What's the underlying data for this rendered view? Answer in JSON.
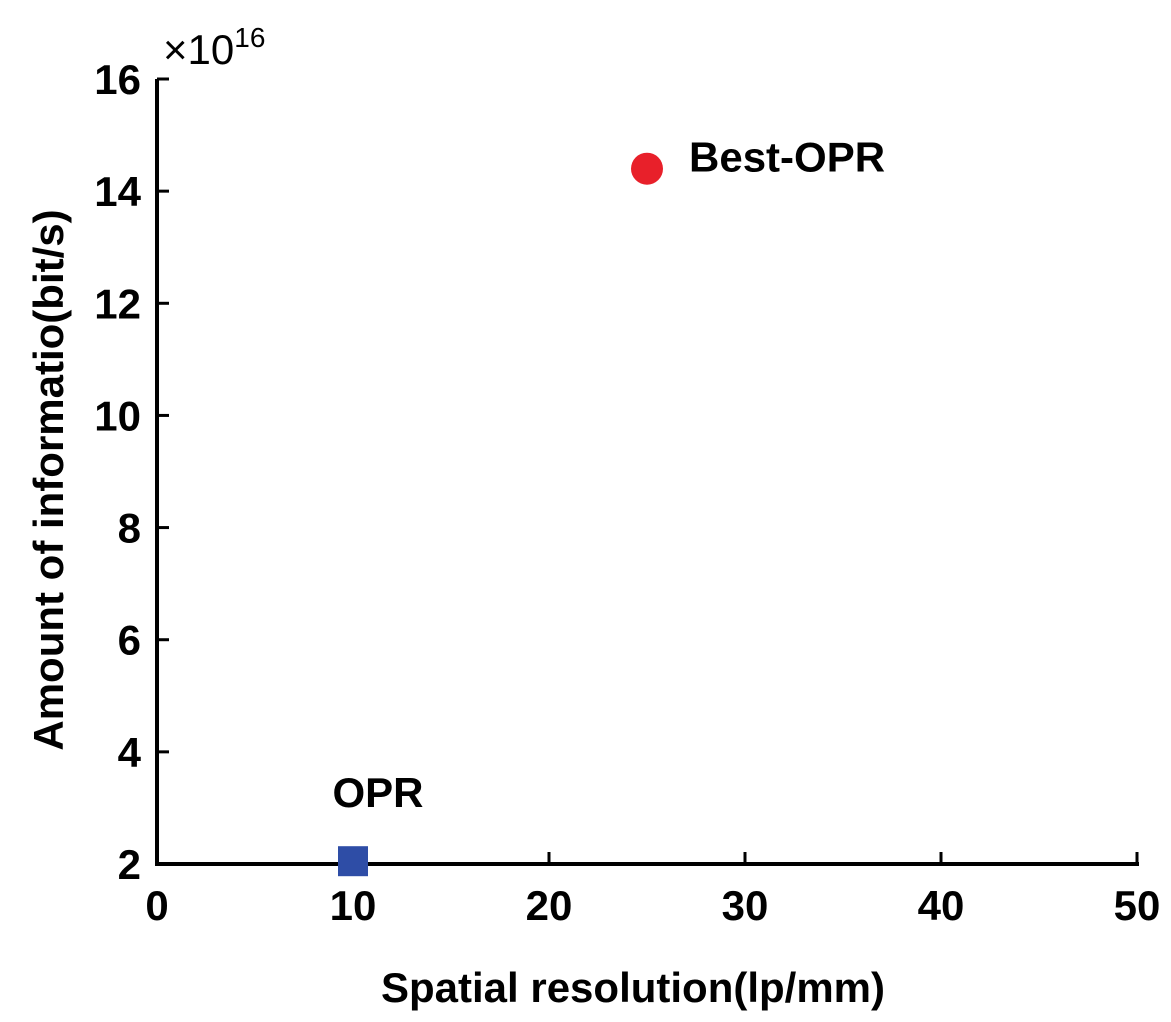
{
  "chart_data": {
    "type": "scatter",
    "xlabel": "Spatial resolution(lp/mm)",
    "ylabel": "Amount of informatio(bit/s)",
    "xlim": [
      0,
      50
    ],
    "ylim": [
      2,
      16
    ],
    "x_ticks": [
      0,
      10,
      20,
      30,
      40,
      50
    ],
    "y_ticks": [
      2,
      4,
      6,
      8,
      10,
      12,
      14,
      16
    ],
    "y_scale_multiplier": {
      "base": "×10",
      "exponent": "16"
    },
    "grid": false,
    "points": [
      {
        "label": "OPR",
        "x": 10,
        "y": 2.05,
        "marker": "square",
        "color": "#2E4DA6",
        "label_position": "above"
      },
      {
        "label": "Best-OPR",
        "x": 25,
        "y": 14.4,
        "marker": "circle",
        "color": "#E8202A",
        "label_position": "right"
      }
    ]
  }
}
